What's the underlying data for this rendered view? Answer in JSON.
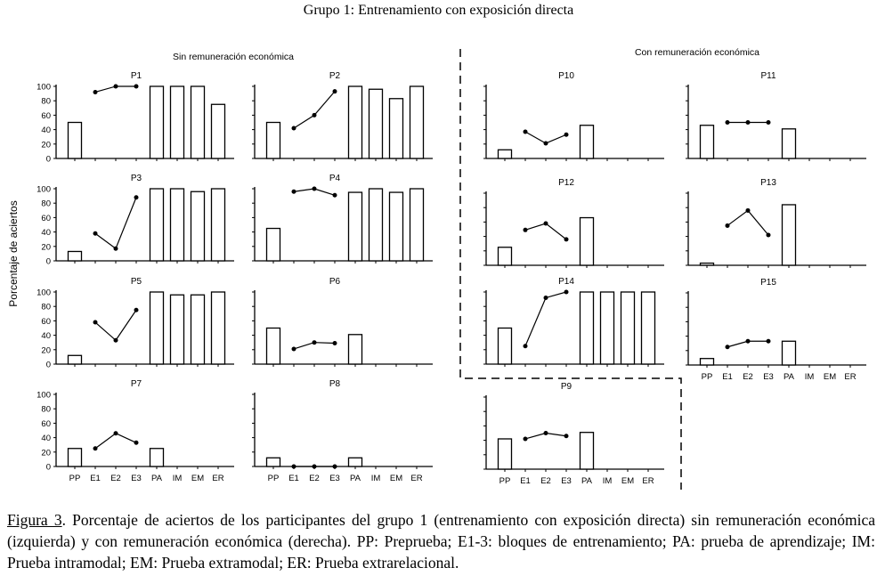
{
  "chart_data": {
    "type": "bar",
    "title": "Grupo 1: Entrenamiento con exposición directa",
    "ylabel": "Porcentaje de aciertos",
    "ylim": [
      0,
      100
    ],
    "yticks": [
      "0",
      "20",
      "40",
      "60",
      "80",
      "100"
    ],
    "categories": [
      "PP",
      "E1",
      "E2",
      "E3",
      "PA",
      "IM",
      "EM",
      "ER"
    ],
    "group_labels": {
      "left": "Sin remuneración económica",
      "right": "Con remuneración económica"
    },
    "note": "bars for PP, PA, IM, EM, ER; line for training blocks E1-E3",
    "panels": [
      {
        "name": "P1",
        "group": "left",
        "pp": 50,
        "e": [
          92,
          100,
          100
        ],
        "tests": [
          100,
          100,
          100,
          75
        ]
      },
      {
        "name": "P2",
        "group": "left",
        "pp": 50,
        "e": [
          42,
          60,
          93
        ],
        "tests": [
          100,
          96,
          83,
          100
        ]
      },
      {
        "name": "P3",
        "group": "left",
        "pp": 13,
        "e": [
          38,
          17,
          88
        ],
        "tests": [
          100,
          100,
          96,
          100
        ]
      },
      {
        "name": "P4",
        "group": "left",
        "pp": 45,
        "e": [
          96,
          100,
          91
        ],
        "tests": [
          95,
          100,
          95,
          100
        ]
      },
      {
        "name": "P5",
        "group": "left",
        "pp": 12,
        "e": [
          58,
          33,
          75
        ],
        "tests": [
          100,
          96,
          96,
          100
        ]
      },
      {
        "name": "P6",
        "group": "left",
        "pp": 50,
        "e": [
          21,
          30,
          29
        ],
        "tests": [
          41,
          null,
          null,
          null
        ]
      },
      {
        "name": "P7",
        "group": "left",
        "pp": 25,
        "e": [
          25,
          46,
          33
        ],
        "tests": [
          25,
          null,
          null,
          null
        ]
      },
      {
        "name": "P8",
        "group": "left",
        "pp": 12,
        "e": [
          0,
          0,
          0
        ],
        "tests": [
          12,
          null,
          null,
          null
        ]
      },
      {
        "name": "P10",
        "group": "right",
        "pp": 12,
        "e": [
          37,
          21,
          33
        ],
        "tests": [
          46,
          null,
          null,
          null
        ]
      },
      {
        "name": "P11",
        "group": "right",
        "pp": 46,
        "e": [
          50,
          50,
          50
        ],
        "tests": [
          41,
          null,
          null,
          null
        ]
      },
      {
        "name": "P12",
        "group": "right",
        "pp": 25,
        "e": [
          49,
          58,
          36
        ],
        "tests": [
          66,
          null,
          null,
          null
        ]
      },
      {
        "name": "P13",
        "group": "right",
        "pp": 3,
        "e": [
          55,
          76,
          42
        ],
        "tests": [
          84,
          null,
          null,
          null
        ]
      },
      {
        "name": "P14",
        "group": "right",
        "pp": 50,
        "e": [
          25,
          92,
          100
        ],
        "tests": [
          100,
          100,
          100,
          100
        ]
      },
      {
        "name": "P15",
        "group": "right",
        "pp": 9,
        "e": [
          25,
          33,
          33
        ],
        "tests": [
          33,
          null,
          null,
          null
        ]
      },
      {
        "name": "P9",
        "group": "right",
        "pp": 42,
        "e": [
          42,
          50,
          46
        ],
        "tests": [
          51,
          null,
          null,
          null
        ]
      }
    ]
  },
  "caption": {
    "figure_label": "Figura 3",
    "text": ". Porcentaje de aciertos de los participantes del grupo 1 (entrenamiento con exposición directa) sin remuneración económica (izquierda) y con remuneración económica (derecha). PP: Preprueba; E1-3: bloques de entrenamiento; PA: prueba de aprendizaje; IM: Prueba intramodal; EM: Prueba extramodal; ER: Prueba extrarelacional."
  }
}
